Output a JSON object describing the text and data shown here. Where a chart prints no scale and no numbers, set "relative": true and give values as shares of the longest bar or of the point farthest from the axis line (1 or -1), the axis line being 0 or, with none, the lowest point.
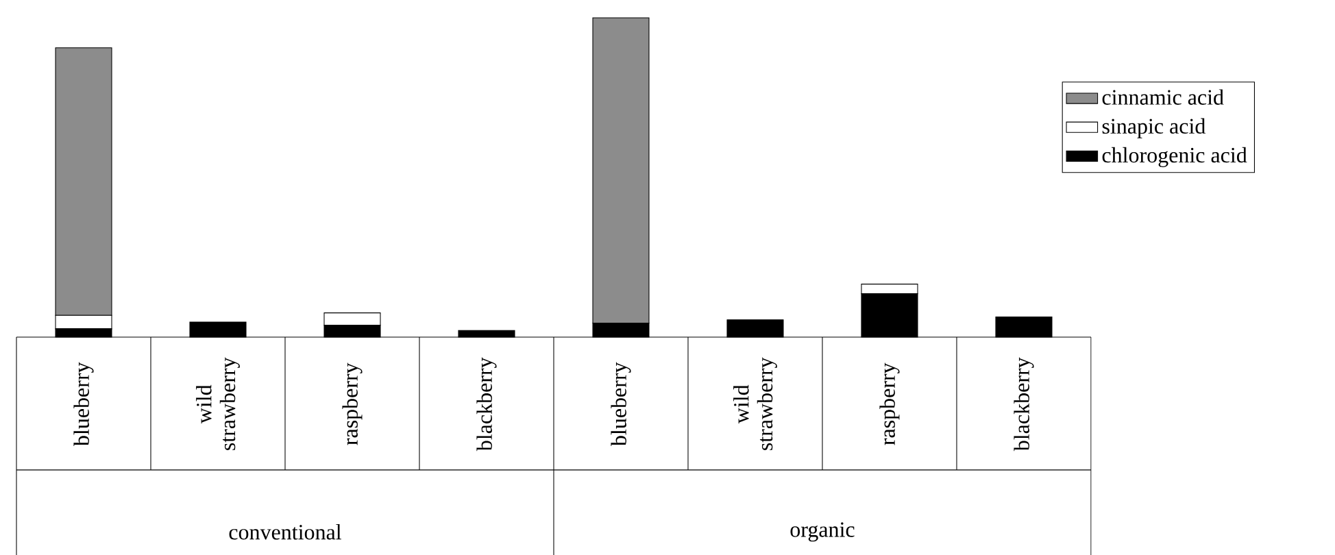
{
  "chart_data": {
    "type": "bar",
    "stacked": true,
    "relative": true,
    "legend": "right",
    "categories": [
      "blueberry",
      "wild strawberry",
      "raspberry",
      "blackberry",
      "blueberry",
      "wild strawberry",
      "raspberry",
      "blackberry"
    ],
    "series": [
      {
        "name": "chlorogenic acid",
        "color": "#000000",
        "values": [
          0.026,
          0.047,
          0.037,
          0.021,
          0.044,
          0.054,
          0.136,
          0.063
        ]
      },
      {
        "name": "sinapic acid",
        "color": "#ffffff",
        "values": [
          0.042,
          0,
          0.039,
          0,
          0,
          0,
          0.03,
          0
        ]
      },
      {
        "name": "cinnamic acid",
        "color": "#8c8c8c",
        "values": [
          0.838,
          0,
          0,
          0,
          0.956,
          0,
          0,
          0
        ]
      }
    ],
    "annotations": [
      "conventional",
      "organic"
    ]
  }
}
